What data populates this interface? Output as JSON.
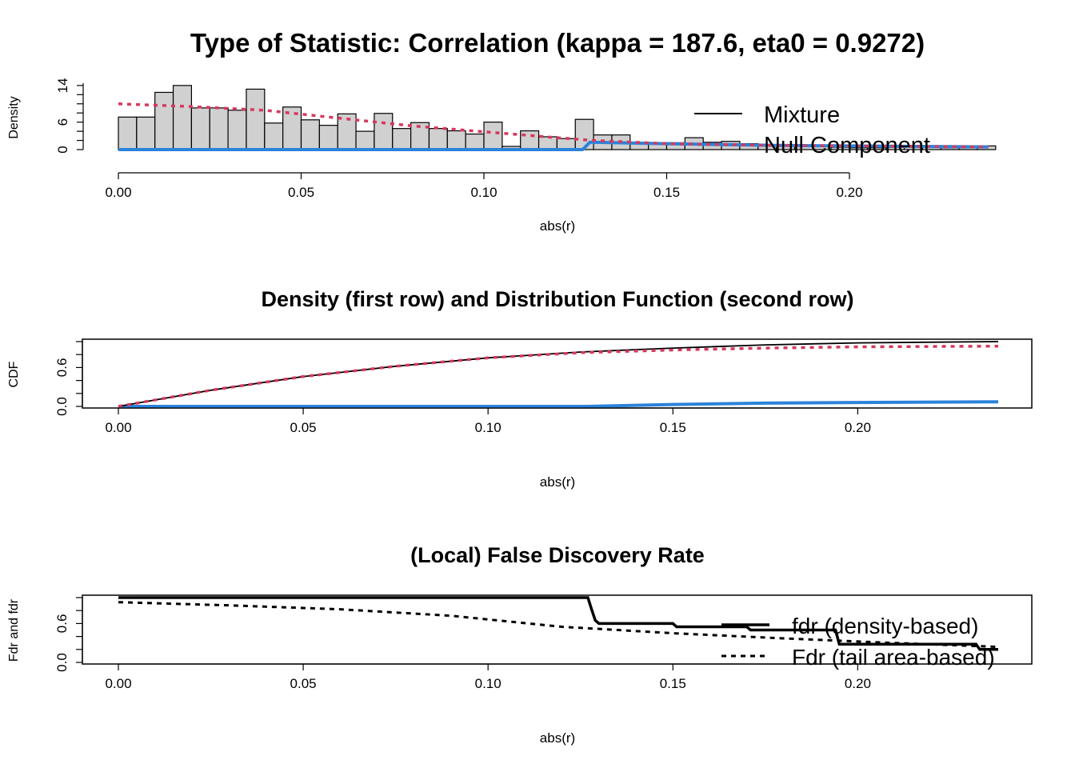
{
  "colors": {
    "mixture": "#000000",
    "null": "#2b83da",
    "dashed": "#d6395c",
    "bar_fill": "#d0d0d0",
    "bar_stroke": "#000000"
  },
  "chart_data": [
    {
      "type": "bar",
      "title": "Type of Statistic: Correlation (kappa = 187.6, eta0 = 0.9272)",
      "xlabel": "abs(r)",
      "ylabel": "Density",
      "xlim": [
        0,
        0.238
      ],
      "ylim": [
        0,
        14.5
      ],
      "x_ticks": [
        "0.00",
        "0.05",
        "0.10",
        "0.15",
        "0.20"
      ],
      "y_ticks": [
        "0",
        "6",
        "14"
      ],
      "histogram": {
        "bin_width": 0.005,
        "values": [
          7.1,
          7.1,
          12.5,
          14.0,
          9.1,
          9.1,
          8.6,
          13.2,
          5.8,
          9.3,
          6.5,
          5.3,
          7.8,
          4.0,
          7.9,
          4.6,
          5.9,
          4.6,
          4.1,
          3.4,
          6.0,
          0.7,
          4.1,
          2.8,
          2.4,
          6.6,
          3.2,
          3.2,
          1.5,
          1.5,
          1.5,
          2.6,
          1.6,
          1.8,
          1.3,
          1.0,
          0.9,
          0.9,
          0.9,
          0.5,
          0.4,
          0.4,
          0.5,
          0.5,
          0.5,
          0.4,
          0.4,
          0.8
        ]
      },
      "series": [
        {
          "name": "Mixture",
          "x": [
            0,
            0.02,
            0.04,
            0.06,
            0.08,
            0.1,
            0.12,
            0.13,
            0.15,
            0.18,
            0.2,
            0.238
          ],
          "y": [
            10.0,
            9.4,
            8.6,
            6.9,
            5.2,
            3.9,
            2.6,
            2.0,
            1.3,
            0.9,
            0.8,
            0.6
          ]
        },
        {
          "name": "Null Component",
          "x": [
            0,
            0.127,
            0.129,
            0.15,
            0.18,
            0.2,
            0.238
          ],
          "y": [
            0,
            0,
            1.6,
            1.3,
            0.9,
            0.8,
            0.6
          ]
        }
      ],
      "legend": {
        "position": "top-right",
        "entries": [
          "Mixture",
          "Null Component"
        ]
      }
    },
    {
      "type": "line",
      "title": "Density (first row) and Distribution Function (second row)",
      "xlabel": "abs(r)",
      "ylabel": "CDF",
      "xlim": [
        0,
        0.238
      ],
      "ylim": [
        0,
        1
      ],
      "x_ticks": [
        "0.00",
        "0.05",
        "0.10",
        "0.15",
        "0.20"
      ],
      "y_ticks": [
        "0.0",
        "0.6"
      ],
      "series": [
        {
          "x": [
            0,
            0.025,
            0.05,
            0.075,
            0.1,
            0.125,
            0.15,
            0.175,
            0.2,
            0.238
          ],
          "y": [
            0,
            0.25,
            0.46,
            0.62,
            0.75,
            0.84,
            0.9,
            0.95,
            0.98,
            1.0
          ]
        },
        {
          "x": [
            0,
            0.025,
            0.05,
            0.075,
            0.1,
            0.125,
            0.15,
            0.175,
            0.2,
            0.238
          ],
          "y": [
            0,
            0.25,
            0.46,
            0.62,
            0.75,
            0.83,
            0.87,
            0.9,
            0.92,
            0.93
          ]
        },
        {
          "x": [
            0,
            0.127,
            0.15,
            0.175,
            0.2,
            0.238
          ],
          "y": [
            0,
            0,
            0.03,
            0.05,
            0.06,
            0.07
          ]
        }
      ]
    },
    {
      "type": "line",
      "title": "(Local) False Discovery Rate",
      "xlabel": "abs(r)",
      "ylabel": "Fdr and fdr",
      "xlim": [
        0,
        0.238
      ],
      "ylim": [
        0,
        1
      ],
      "x_ticks": [
        "0.00",
        "0.05",
        "0.10",
        "0.15",
        "0.20"
      ],
      "y_ticks": [
        "0.0",
        "0.6"
      ],
      "series": [
        {
          "name": "fdr (density-based)",
          "x": [
            0,
            0.127,
            0.128,
            0.129,
            0.13,
            0.15,
            0.151,
            0.17,
            0.171,
            0.194,
            0.195,
            0.232,
            0.233,
            0.238
          ],
          "y": [
            1.0,
            1.0,
            0.82,
            0.65,
            0.6,
            0.6,
            0.55,
            0.55,
            0.5,
            0.5,
            0.28,
            0.28,
            0.2,
            0.2
          ]
        },
        {
          "name": "Fdr (tail area-based)",
          "x": [
            0,
            0.03,
            0.06,
            0.09,
            0.12,
            0.15,
            0.18,
            0.21,
            0.238
          ],
          "y": [
            0.93,
            0.88,
            0.82,
            0.72,
            0.55,
            0.45,
            0.37,
            0.3,
            0.24
          ]
        }
      ],
      "legend": {
        "position": "bottom-right",
        "entries": [
          "fdr (density-based)",
          "Fdr (tail area-based)"
        ]
      }
    }
  ]
}
